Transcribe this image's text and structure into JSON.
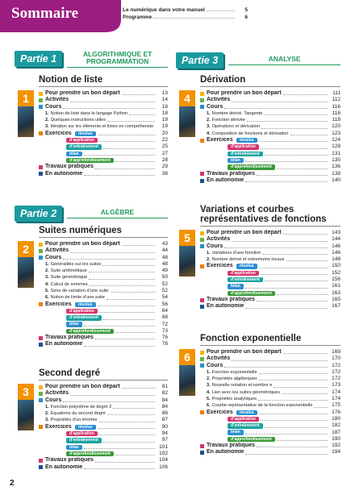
{
  "header": {
    "title": "Sommaire",
    "links": [
      {
        "label": "Le numérique dans votre manuel",
        "page": 5
      },
      {
        "label": "Programme",
        "page": 6
      }
    ]
  },
  "page_number": "2",
  "parts": [
    {
      "label": "Partie 1",
      "title": "ALGORITHMIQUE ET PROGRAMMATION",
      "chapters": [
        {
          "number": "1",
          "title": "Notion de liste",
          "start": {
            "label": "Pour prendre un bon départ",
            "page": 13
          },
          "activities": {
            "label": "Activités",
            "page": 14
          },
          "course": {
            "label": "Cours",
            "page": 18,
            "sections": [
              {
                "number": "1.",
                "label": "Notion de liste dans le langage Python",
                "page": 18
              },
              {
                "number": "2.",
                "label": "Quelques instructions utiles",
                "page": 19
              },
              {
                "number": "3.",
                "label": "Itération sur les éléments et listes en compréhension",
                "page": 19
              }
            ]
          },
          "exercises": {
            "label": "Exercices",
            "levels": [
              {
                "label": "résolus",
                "page": 20
              },
              {
                "label": "d’application",
                "page": 22
              },
              {
                "label": "d’entraînement",
                "page": 25
              },
              {
                "label": "bilan",
                "page": 27
              },
              {
                "label": "d’approfondissement",
                "page": 28
              }
            ]
          },
          "practicals": {
            "label": "Travaux pratiques",
            "page": 29
          },
          "autonomy": {
            "label": "En autonomie",
            "page": 38
          }
        }
      ]
    },
    {
      "label": "Partie 2",
      "title": "ALGÈBRE",
      "chapters": [
        {
          "number": "2",
          "title": "Suites numériques",
          "start": {
            "label": "Pour prendre un bon départ",
            "page": 43
          },
          "activities": {
            "label": "Activités",
            "page": 44
          },
          "course": {
            "label": "Cours",
            "page": 48,
            "sections": [
              {
                "number": "1.",
                "label": "Généralités sur les suites",
                "page": 48
              },
              {
                "number": "2.",
                "label": "Suite arithmétique",
                "page": 49
              },
              {
                "number": "3.",
                "label": "Suite géométrique",
                "page": 50
              },
              {
                "number": "4.",
                "label": "Calcul de sommes",
                "page": 52
              },
              {
                "number": "5.",
                "label": "Sens de variation d’une suite",
                "page": 52
              },
              {
                "number": "6.",
                "label": "Notion de limite d’une suite",
                "page": 54
              }
            ]
          },
          "exercises": {
            "label": "Exercices",
            "levels": [
              {
                "label": "résolus",
                "page": 56
              },
              {
                "label": "d’application",
                "page": 64
              },
              {
                "label": "d’entraînement",
                "page": 68
              },
              {
                "label": "bilan",
                "page": 72
              },
              {
                "label": "d’approfondissement",
                "page": 73
              }
            ]
          },
          "practicals": {
            "label": "Travaux pratiques",
            "page": 76
          },
          "autonomy": {
            "label": "En autonomie",
            "page": 78
          }
        },
        {
          "number": "3",
          "title": "Second degré",
          "start": {
            "label": "Pour prendre un bon départ",
            "page": 81
          },
          "activities": {
            "label": "Activités",
            "page": 82
          },
          "course": {
            "label": "Cours",
            "page": 84,
            "sections": [
              {
                "number": "1.",
                "label": "Fonction polynôme de degré 2",
                "page": 84
              },
              {
                "number": "2.",
                "label": "Équations du second degré",
                "page": 86
              },
              {
                "number": "3.",
                "label": "Propriétés d’un trinôme",
                "page": 87
              }
            ]
          },
          "exercises": {
            "label": "Exercices",
            "levels": [
              {
                "label": "résolus",
                "page": 90
              },
              {
                "label": "d’application",
                "page": 94
              },
              {
                "label": "d’entraînement",
                "page": 97
              },
              {
                "label": "bilan",
                "page": 101
              },
              {
                "label": "d’approfondissement",
                "page": 102
              }
            ]
          },
          "practicals": {
            "label": "Travaux pratiques",
            "page": 104
          },
          "autonomy": {
            "label": "En autonomie",
            "page": 106
          }
        }
      ]
    },
    {
      "label": "Partie 3",
      "title": "ANALYSE",
      "chapters": [
        {
          "number": "4",
          "title": "Dérivation",
          "start": {
            "label": "Pour prendre un bon départ",
            "page": 111
          },
          "activities": {
            "label": "Activités",
            "page": 112
          },
          "course": {
            "label": "Cours",
            "page": 116,
            "sections": [
              {
                "number": "1.",
                "label": "Nombre dérivé. Tangente",
                "page": 116
              },
              {
                "number": "2.",
                "label": "Fonction dérivée",
                "page": 118
              },
              {
                "number": "3.",
                "label": "Opérations et dérivation",
                "page": 120
              },
              {
                "number": "4.",
                "label": "Composition de fonctions et dérivation",
                "page": 123
              }
            ]
          },
          "exercises": {
            "label": "Exercices",
            "levels": [
              {
                "label": "résolus",
                "page": 124
              },
              {
                "label": "d’application",
                "page": 128
              },
              {
                "label": "d’entraînement",
                "page": 131
              },
              {
                "label": "bilan",
                "page": 135
              },
              {
                "label": "d’approfondissement",
                "page": 136
              }
            ]
          },
          "practicals": {
            "label": "Travaux pratiques",
            "page": 138
          },
          "autonomy": {
            "label": "En autonomie",
            "page": 140
          }
        },
        {
          "number": "5",
          "title": "Variations et courbes représentatives de fonctions",
          "start": {
            "label": "Pour prendre un bon départ",
            "page": 143
          },
          "activities": {
            "label": "Activités",
            "page": 144
          },
          "course": {
            "label": "Cours",
            "page": 146,
            "sections": [
              {
                "number": "1.",
                "label": "Variations d’une fonction",
                "page": 146
              },
              {
                "number": "2.",
                "label": "Nombre dérivé et extremums locaux",
                "page": 148
              }
            ]
          },
          "exercises": {
            "label": "Exercices",
            "levels": [
              {
                "label": "résolus",
                "page": 150
              },
              {
                "label": "d’application",
                "page": 152
              },
              {
                "label": "d’entraînement",
                "page": 156
              },
              {
                "label": "bilan",
                "page": 161
              },
              {
                "label": "d’approfondissement",
                "page": 163
              }
            ]
          },
          "practicals": {
            "label": "Travaux pratiques",
            "page": 165
          },
          "autonomy": {
            "label": "En autonomie",
            "page": 167
          }
        },
        {
          "number": "6",
          "title": "Fonction exponentielle",
          "start": {
            "label": "Pour prendre un bon départ",
            "page": 169
          },
          "activities": {
            "label": "Activités",
            "page": 170
          },
          "course": {
            "label": "Cours",
            "page": 172,
            "sections": [
              {
                "number": "1.",
                "label": "Fonction exponentielle",
                "page": 172
              },
              {
                "number": "2.",
                "label": "Propriétés algébriques",
                "page": 172
              },
              {
                "number": "3.",
                "label": "Nouvelle notation et nombre e",
                "page": 173
              },
              {
                "number": "4.",
                "label": "Lien avec les suites géométriques",
                "page": 174
              },
              {
                "number": "5.",
                "label": "Propriétés analytiques",
                "page": 174
              },
              {
                "number": "6.",
                "label": "Courbe représentative de la fonction exponentielle",
                "page": 175
              }
            ]
          },
          "exercises": {
            "label": "Exercices",
            "levels": [
              {
                "label": "résolus",
                "page": 176
              },
              {
                "label": "d’application",
                "page": 180
              },
              {
                "label": "d’entraînement",
                "page": 182
              },
              {
                "label": "bilan",
                "page": 187
              },
              {
                "label": "d’approfondissement",
                "page": 190
              }
            ]
          },
          "practicals": {
            "label": "Travaux pratiques",
            "page": 192
          },
          "autonomy": {
            "label": "En autonomie",
            "page": 194
          }
        }
      ]
    }
  ]
}
